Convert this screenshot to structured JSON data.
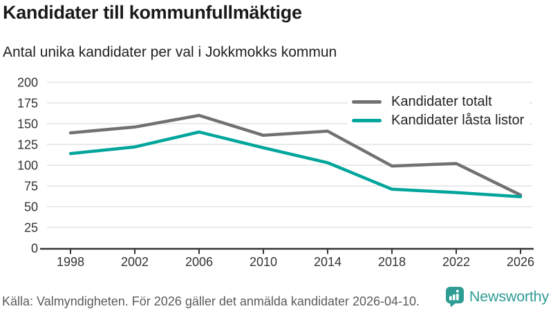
{
  "header": {
    "title": "Kandidater till kommunfullmäktige",
    "subtitle": "Antal unika kandidater per val i Jokkmokks kommun"
  },
  "chart_data": {
    "type": "line",
    "categories": [
      "1998",
      "2002",
      "2006",
      "2010",
      "2014",
      "2018",
      "2022",
      "2026"
    ],
    "series": [
      {
        "name": "Kandidater totalt",
        "color": "#717171",
        "values": [
          139,
          146,
          160,
          136,
          141,
          99,
          102,
          64
        ]
      },
      {
        "name": "Kandidater låsta listor",
        "color": "#00a59b",
        "values": [
          114,
          122,
          140,
          121,
          103,
          71,
          67,
          62
        ]
      }
    ],
    "title": "Kandidater till kommunfullmäktige",
    "subtitle": "Antal unika kandidater per val i Jokkmokks kommun",
    "xlabel": "",
    "ylabel": "",
    "ylim": [
      0,
      200
    ],
    "ytick_step": 25,
    "grid": true,
    "legend_position": "top-right"
  },
  "footer": {
    "source": "Källa: Valmyndigheten. För 2026 gäller det anmälda kandidater 2026-04-10.",
    "brand": "Newsworthy"
  },
  "colors": {
    "series_gray": "#717171",
    "accent_teal": "#00a59b",
    "brand_teal": "#2f9c93",
    "axis": "#333333",
    "grid": "#e4e4e4",
    "tick_text": "#333333"
  }
}
